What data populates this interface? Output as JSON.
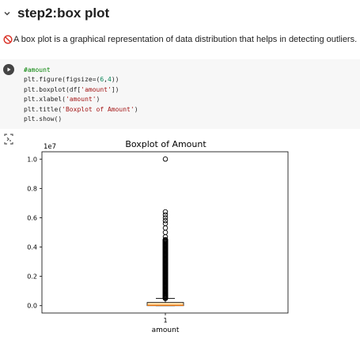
{
  "heading": {
    "title": "step2:box plot"
  },
  "markdown": {
    "text": "A box plot is a graphical representation of data distribution that helps in detecting outliers."
  },
  "code": {
    "lines": [
      "#amount",
      "plt.figure(figsize=(6,4))",
      "plt.boxplot(df['amount'])",
      "plt.xlabel('amount')",
      "plt.title('Boxplot of Amount')",
      "plt.show()"
    ]
  },
  "colors": {
    "cell_bg": "#f7f7f7",
    "box_fill": "#ffdca8",
    "median": "#ff7f0e"
  },
  "chart_data": {
    "type": "box",
    "title": "Boxplot of Amount",
    "xlabel": "amount",
    "ylabel": "",
    "y_multiplier_label": "1e7",
    "categories": [
      "1"
    ],
    "yticks": [
      "0.0",
      "0.2",
      "0.4",
      "0.6",
      "0.8",
      "1.0"
    ],
    "ylim": [
      -0.05,
      1.05
    ],
    "box": {
      "q1": 0.0,
      "median": 0.008,
      "q3": 0.022,
      "whisker_low": 0.0,
      "whisker_high": 0.05
    },
    "outliers_dense_range": [
      0.05,
      0.45
    ],
    "outliers": [
      0.47,
      0.5,
      0.53,
      0.56,
      0.58,
      0.6,
      0.62,
      0.64,
      1.0
    ],
    "grid": false,
    "scale": 10000000
  }
}
